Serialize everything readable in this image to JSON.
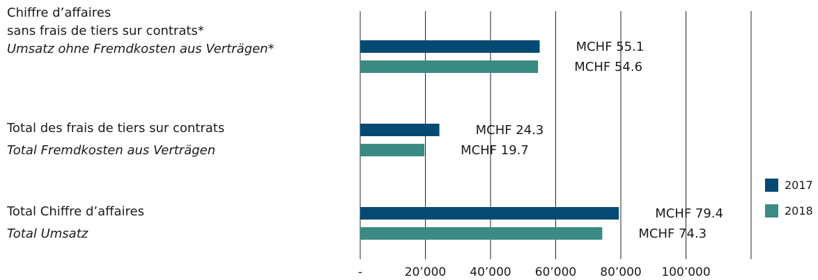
{
  "colors": {
    "y2017": "#054a73",
    "y2018": "#3a8b83",
    "grid": "#222222"
  },
  "chart_data": {
    "type": "bar",
    "orientation": "horizontal",
    "categories": [
      {
        "line1": "Chiffre d’affaires",
        "line2": "sans frais de tiers sur contrats*",
        "line3": "Umsatz ohne Fremdkosten aus Verträgen*"
      },
      {
        "line1": "Total des frais de tiers sur contrats",
        "line2": "Total Fremdkosten aus Verträgen"
      },
      {
        "line1": "Total Chiffre d’affaires",
        "line2": "Total Umsatz"
      }
    ],
    "series": [
      {
        "name": "2017",
        "values": [
          55100,
          24300,
          79400
        ],
        "labels": [
          "MCHF 55.1",
          "MCHF 24.3",
          "MCHF 79.4"
        ]
      },
      {
        "name": "2018",
        "values": [
          54600,
          19700,
          74300
        ],
        "labels": [
          "MCHF 54.6",
          "MCHF 19.7",
          "MCHF 74.3"
        ]
      }
    ],
    "xlim": [
      0,
      120000
    ],
    "xticks": [
      0,
      20000,
      40000,
      60000,
      80000,
      100000
    ],
    "xtick_labels": [
      "-",
      "20’000",
      "40’000",
      "60’000",
      "80’000",
      "100’000"
    ],
    "grid": true,
    "legend": "right"
  }
}
